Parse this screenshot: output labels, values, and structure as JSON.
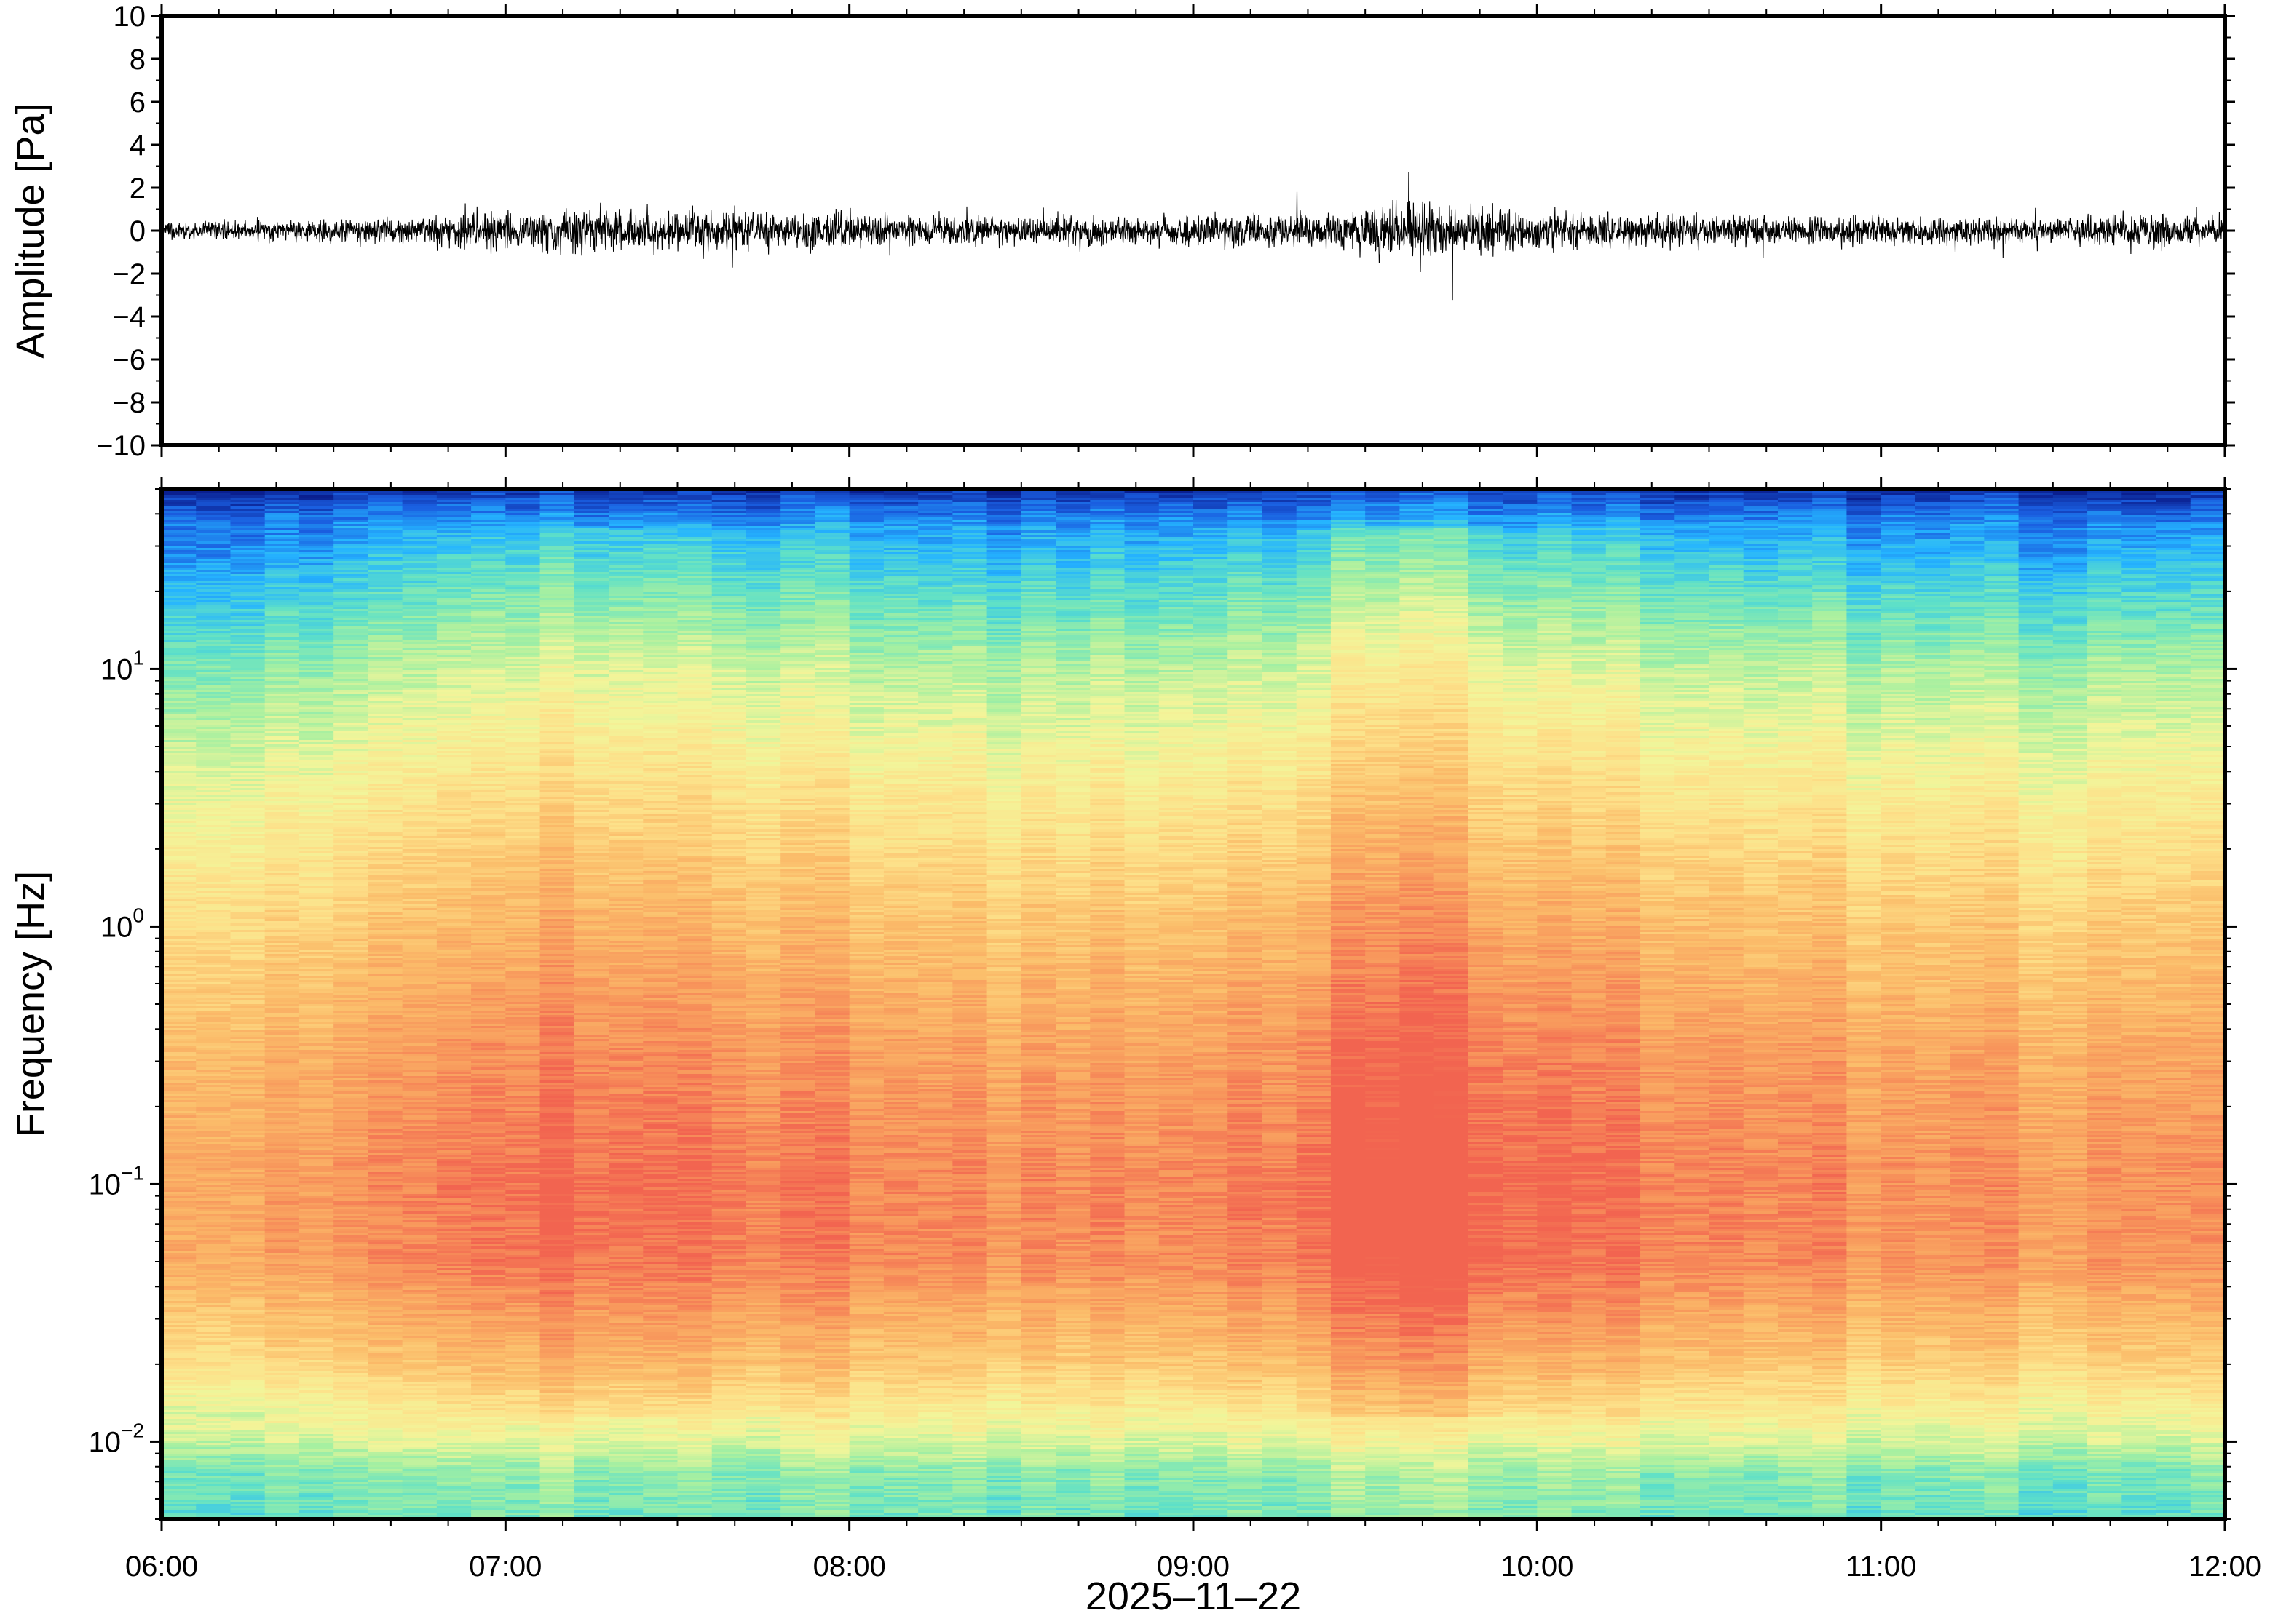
{
  "chart_data": [
    {
      "type": "line",
      "title": "",
      "ylabel": "Amplitude [Pa]",
      "xlabel": "",
      "ylim": [
        -10,
        10
      ],
      "yticks": [
        10,
        8,
        6,
        4,
        2,
        0,
        -2,
        -4,
        -6,
        -8,
        -10
      ],
      "ytick_labels": [
        "10",
        "8",
        "6",
        "4",
        "2",
        "0",
        "−2",
        "−4",
        "−6",
        "−8",
        "−10"
      ],
      "x_start": "06:00",
      "x_end": "12:00",
      "grid": false,
      "series": [
        {
          "color": "#000000",
          "envelope_t": [
            "06:00",
            "06:30",
            "07:00",
            "07:10",
            "07:30",
            "08:00",
            "08:30",
            "09:00",
            "09:20",
            "09:30",
            "09:40",
            "09:50",
            "10:00",
            "10:30",
            "11:00",
            "11:30",
            "11:50",
            "12:00"
          ],
          "envelope_amplitude": [
            0.7,
            1.0,
            1.6,
            1.9,
            1.8,
            1.4,
            1.2,
            1.3,
            1.6,
            2.2,
            2.4,
            2.0,
            1.8,
            1.4,
            1.2,
            1.1,
            1.5,
            1.0
          ]
        }
      ]
    },
    {
      "type": "heatmap",
      "title": "",
      "ylabel": "Frequency [Hz]",
      "xlabel": "2025–11–22",
      "y_scale": "log",
      "ylim": [
        0.005,
        50
      ],
      "yticks": [
        0.01,
        0.1,
        1,
        10
      ],
      "ytick_labels": [
        {
          "base": "10",
          "exp": "−2"
        },
        {
          "base": "10",
          "exp": "−1"
        },
        {
          "base": "10",
          "exp": "0"
        },
        {
          "base": "10",
          "exp": "1"
        }
      ],
      "x_start": "06:00",
      "x_end": "12:00",
      "xtick_labels": [
        "06:00",
        "07:00",
        "08:00",
        "09:00",
        "10:00",
        "11:00",
        "12:00"
      ],
      "colormap": [
        "#0a1f8f",
        "#1a5ee0",
        "#25b4ff",
        "#5ee0c8",
        "#a8f0a0",
        "#f2f59a",
        "#fde089",
        "#fbbd6a",
        "#f8985c",
        "#f26450"
      ],
      "column_minutes": 6
    }
  ]
}
